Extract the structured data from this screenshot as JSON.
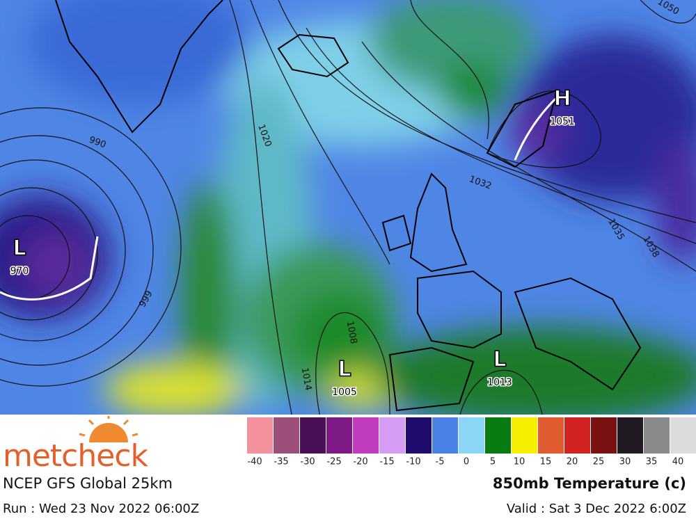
{
  "header": {
    "logo": "metcheck",
    "model": "NCEP GFS Global 25km",
    "run": "Run : Wed 23 Nov 2022 06:00Z",
    "field": "850mb Temperature (c)",
    "valid": "Valid : Sat 3 Dec 2022 6:00Z"
  },
  "legend": {
    "items": [
      {
        "value": -40,
        "color": "#f4919f"
      },
      {
        "value": -35,
        "color": "#9c4f78"
      },
      {
        "value": -30,
        "color": "#4b0f55"
      },
      {
        "value": -25,
        "color": "#7d1a85"
      },
      {
        "value": -20,
        "color": "#c23cbe"
      },
      {
        "value": -15,
        "color": "#d69bf2"
      },
      {
        "value": -10,
        "color": "#200c6c"
      },
      {
        "value": -5,
        "color": "#4b82e8"
      },
      {
        "value": 0,
        "color": "#8ad6f4"
      },
      {
        "value": 5,
        "color": "#0a7a12"
      },
      {
        "value": 10,
        "color": "#f6ef00"
      },
      {
        "value": 15,
        "color": "#e25c32"
      },
      {
        "value": 20,
        "color": "#d32222"
      },
      {
        "value": 25,
        "color": "#7a1212"
      },
      {
        "value": 30,
        "color": "#221a22"
      },
      {
        "value": 35,
        "color": "#8a8a8a"
      },
      {
        "value": 40,
        "color": "#dcdcdc"
      }
    ]
  },
  "centers": [
    {
      "symbol": "L",
      "pressure": "970"
    },
    {
      "symbol": "L",
      "pressure": "1005"
    },
    {
      "symbol": "L",
      "pressure": "1013"
    },
    {
      "symbol": "H",
      "pressure": "1051"
    }
  ],
  "isobar_labels": [
    "990",
    "999",
    "1020",
    "1008",
    "1014",
    "1032",
    "1035",
    "1038",
    "1050"
  ]
}
